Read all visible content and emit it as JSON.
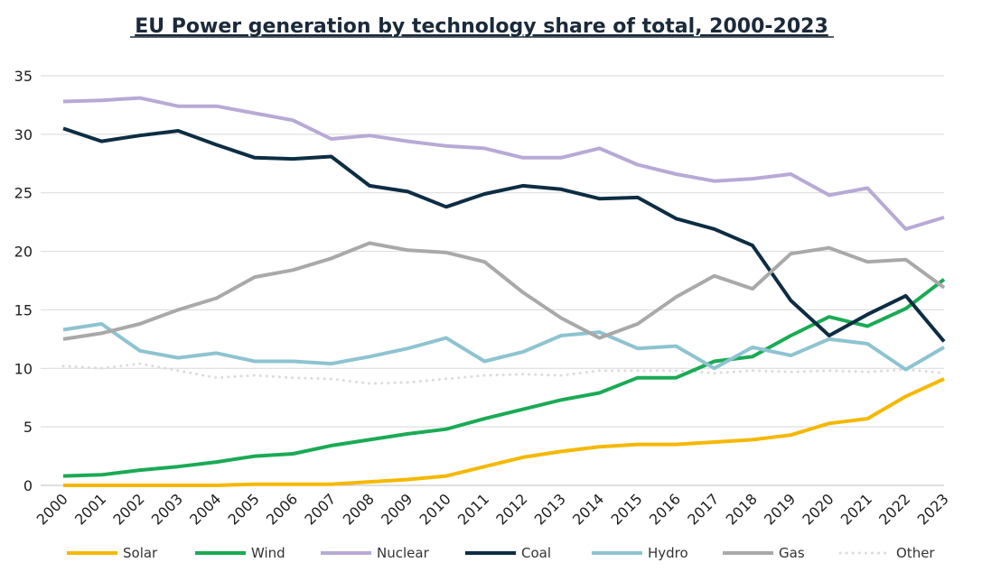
{
  "chart_data": {
    "type": "line",
    "title": "EU Power generation by technology share of total, 2000-2023",
    "xlabel": "",
    "ylabel": "",
    "ylim": [
      0,
      35
    ],
    "yticks": [
      "0",
      "5",
      "10",
      "15",
      "20",
      "25",
      "30",
      "35"
    ],
    "grid": "horizontal",
    "legend": "bottom",
    "categories": [
      "2000",
      "2001",
      "2002",
      "2003",
      "2004",
      "2005",
      "2006",
      "2007",
      "2008",
      "2009",
      "2010",
      "2011",
      "2012",
      "2013",
      "2014",
      "2015",
      "2016",
      "2017",
      "2018",
      "2019",
      "2020",
      "2021",
      "2022",
      "2023"
    ],
    "series": [
      {
        "name": "Solar",
        "color": "#f5b800",
        "dashed": false,
        "values": [
          0.0,
          0.0,
          0.0,
          0.0,
          0.0,
          0.1,
          0.1,
          0.1,
          0.3,
          0.5,
          0.8,
          1.6,
          2.4,
          2.9,
          3.3,
          3.5,
          3.5,
          3.7,
          3.9,
          4.3,
          5.3,
          5.7,
          7.6,
          9.1
        ]
      },
      {
        "name": "Wind",
        "color": "#1aaa55",
        "dashed": false,
        "values": [
          0.8,
          0.9,
          1.3,
          1.6,
          2.0,
          2.5,
          2.7,
          3.4,
          3.9,
          4.4,
          4.8,
          5.7,
          6.5,
          7.3,
          7.9,
          9.2,
          9.2,
          10.6,
          11.0,
          12.8,
          14.4,
          13.6,
          15.1,
          17.6
        ]
      },
      {
        "name": "Nuclear",
        "color": "#b8a9d6",
        "dashed": false,
        "values": [
          32.8,
          32.9,
          33.1,
          32.4,
          32.4,
          31.8,
          31.2,
          29.6,
          29.9,
          29.4,
          29.0,
          28.8,
          28.0,
          28.0,
          28.8,
          27.4,
          26.6,
          26.0,
          26.2,
          26.6,
          24.8,
          25.4,
          21.9,
          22.9
        ]
      },
      {
        "name": "Coal",
        "color": "#0d2d43",
        "dashed": false,
        "values": [
          30.5,
          29.4,
          29.9,
          30.3,
          29.1,
          28.0,
          27.9,
          28.1,
          25.6,
          25.1,
          23.8,
          24.9,
          25.6,
          25.3,
          24.5,
          24.6,
          22.8,
          21.9,
          20.5,
          15.8,
          12.8,
          14.6,
          16.2,
          12.3
        ]
      },
      {
        "name": "Hydro",
        "color": "#8ec3d0",
        "dashed": false,
        "values": [
          13.3,
          13.8,
          11.5,
          10.9,
          11.3,
          10.6,
          10.6,
          10.4,
          11.0,
          11.7,
          12.6,
          10.6,
          11.4,
          12.8,
          13.1,
          11.7,
          11.9,
          10.0,
          11.8,
          11.1,
          12.5,
          12.1,
          9.9,
          11.8
        ]
      },
      {
        "name": "Gas",
        "color": "#a9a9a9",
        "dashed": false,
        "values": [
          12.5,
          13.0,
          13.8,
          15.0,
          16.0,
          17.8,
          18.4,
          19.4,
          20.7,
          20.1,
          19.9,
          19.1,
          16.5,
          14.3,
          12.6,
          13.8,
          16.1,
          17.9,
          16.8,
          19.8,
          20.3,
          19.1,
          19.3,
          16.9
        ]
      },
      {
        "name": "Other",
        "color": "#dcdcdc",
        "dashed": true,
        "values": [
          10.2,
          10.0,
          10.4,
          9.8,
          9.2,
          9.4,
          9.2,
          9.1,
          8.7,
          8.8,
          9.1,
          9.4,
          9.5,
          9.4,
          9.8,
          9.8,
          9.8,
          9.6,
          9.8,
          9.7,
          9.8,
          9.7,
          9.9,
          9.6
        ]
      }
    ]
  }
}
